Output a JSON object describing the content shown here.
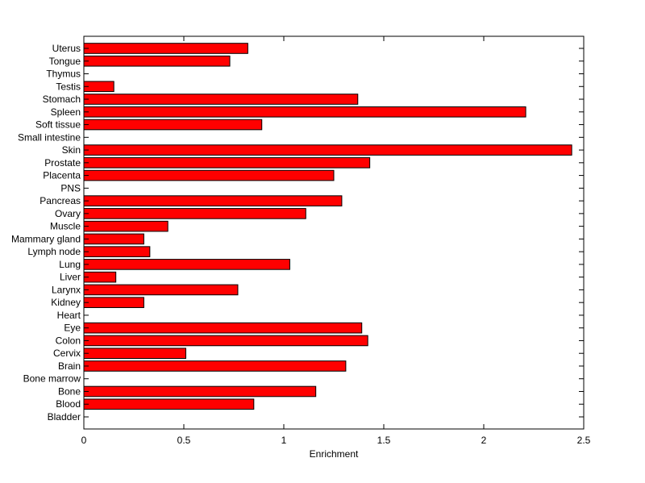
{
  "chart_data": {
    "type": "bar",
    "orientation": "horizontal",
    "title": "",
    "xlabel": "Enrichment",
    "ylabel": "",
    "xlim": [
      0,
      2.5
    ],
    "xticks": [
      0,
      0.5,
      1,
      1.5,
      2,
      2.5
    ],
    "xtick_labels": [
      "0",
      "0.5",
      "1",
      "1.5",
      "2",
      "2.5"
    ],
    "grid": false,
    "legend": "none",
    "bar_color": "#ff0000",
    "bar_edge_color": "#000000",
    "categories": [
      "Bladder",
      "Blood",
      "Bone",
      "Bone marrow",
      "Brain",
      "Cervix",
      "Colon",
      "Eye",
      "Heart",
      "Kidney",
      "Larynx",
      "Liver",
      "Lung",
      "Lymph node",
      "Mammary gland",
      "Muscle",
      "Ovary",
      "Pancreas",
      "PNS",
      "Placenta",
      "Prostate",
      "Skin",
      "Small intestine",
      "Soft tissue",
      "Spleen",
      "Stomach",
      "Testis",
      "Thymus",
      "Tongue",
      "Uterus"
    ],
    "values": [
      0,
      0.85,
      1.16,
      0,
      1.31,
      0.51,
      1.42,
      1.39,
      0,
      0.3,
      0.77,
      0.16,
      1.03,
      0.33,
      0.3,
      0.42,
      1.11,
      1.29,
      0,
      1.25,
      1.43,
      2.44,
      0,
      0.89,
      2.21,
      1.37,
      0.15,
      0,
      0.73,
      0.82
    ]
  }
}
